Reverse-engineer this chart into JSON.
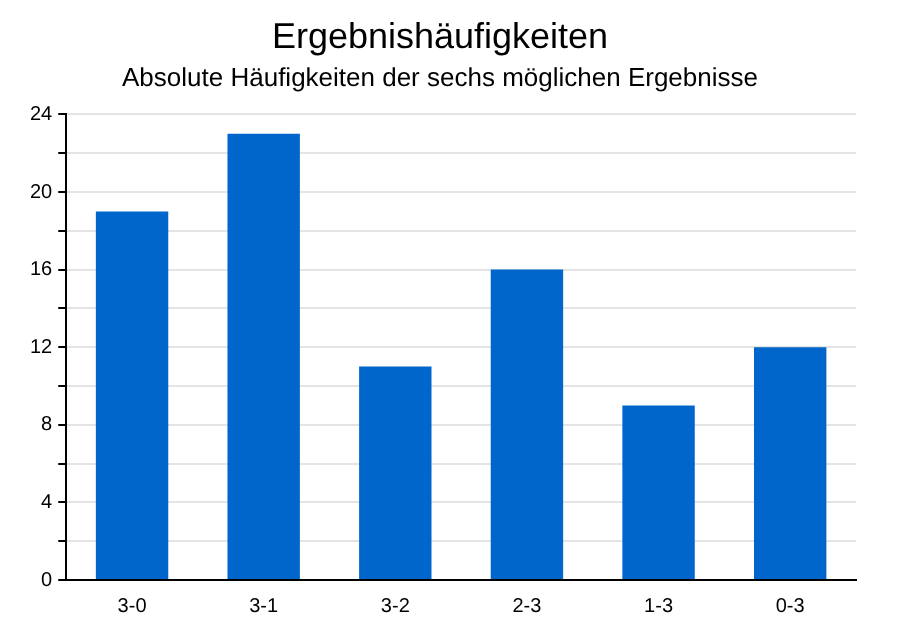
{
  "chart_data": {
    "type": "bar",
    "title": "Ergebnishäufigkeiten",
    "subtitle": "Absolute Häufigkeiten der sechs möglichen Ergebnisse",
    "categories": [
      "3-0",
      "3-1",
      "3-2",
      "2-3",
      "1-3",
      "0-3"
    ],
    "values": [
      19,
      23,
      11,
      16,
      9,
      12
    ],
    "color": "#0066cc",
    "ylim": [
      0,
      24
    ],
    "yticks": [
      0,
      {
        "value": 2,
        "label": null
      },
      4,
      {
        "value": 6,
        "label": null
      },
      8,
      {
        "value": 10,
        "label": null
      },
      12,
      {
        "value": 14,
        "label": null
      },
      16,
      {
        "value": 18,
        "label": null
      },
      20,
      {
        "value": 22,
        "label": null
      },
      24
    ],
    "grid": "y",
    "legend": false
  }
}
